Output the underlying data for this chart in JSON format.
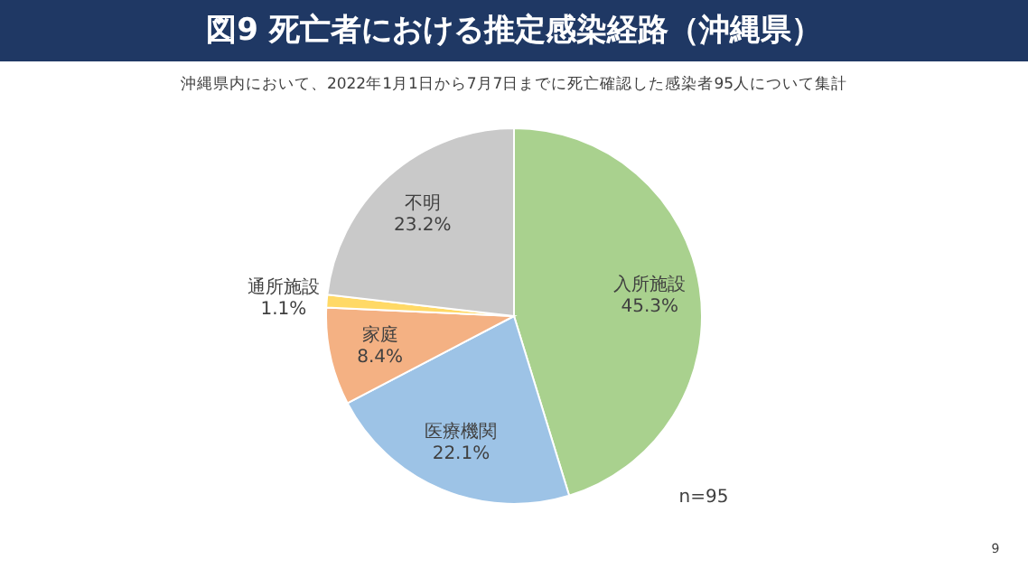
{
  "chart_data": {
    "type": "pie",
    "title": "図9 死亡者における推定感染経路（沖縄県）",
    "subtitle": "沖縄県内において、2022年1月1日から7月7日までに死亡確認した感染者95人について集計",
    "categories": [
      "入所施設",
      "医療機関",
      "家庭",
      "通所施設",
      "不明"
    ],
    "values": [
      45.3,
      22.1,
      8.4,
      1.1,
      23.2
    ],
    "colors": [
      "#a9d18e",
      "#9dc3e6",
      "#f4b183",
      "#ffd966",
      "#c9c9c9"
    ],
    "value_labels": [
      "45.3%",
      "22.1%",
      "8.4%",
      "1.1%",
      "23.2%"
    ],
    "annotations": [
      "n=95",
      "9"
    ]
  }
}
